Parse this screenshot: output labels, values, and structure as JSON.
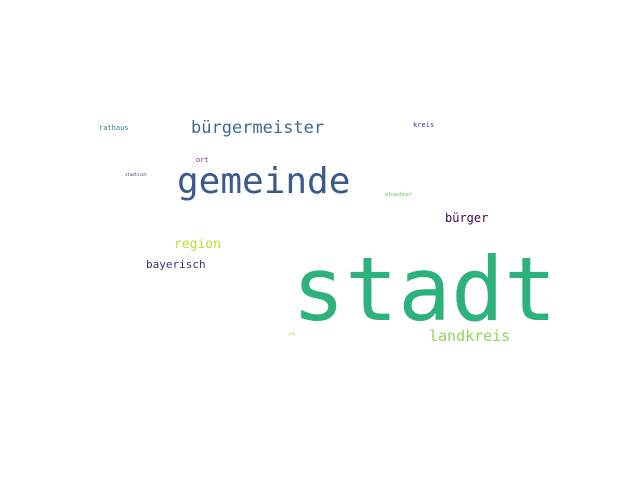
{
  "word_cloud": {
    "background_color": "#ffffff",
    "words": [
      {
        "key": "stadt",
        "text": "stadt",
        "color": "#2db27d"
      },
      {
        "key": "gemeinde",
        "text": "gemeinde",
        "color": "#3b5a8c"
      },
      {
        "key": "buergermeister",
        "text": "bürgermeister",
        "color": "#3e6a8e"
      },
      {
        "key": "landkreis",
        "text": "landkreis",
        "color": "#8ed654"
      },
      {
        "key": "region",
        "text": "region",
        "color": "#c5d930"
      },
      {
        "key": "buerger",
        "text": "bürger",
        "color": "#440154"
      },
      {
        "key": "bayerisch",
        "text": "bayerisch",
        "color": "#3a2f7a"
      },
      {
        "key": "rathaus",
        "text": "rathaus",
        "color": "#2c7d8e"
      },
      {
        "key": "kreis",
        "text": "kreis",
        "color": "#43418a"
      },
      {
        "key": "ort",
        "text": "ort",
        "color": "#6d2a8a"
      },
      {
        "key": "einwohner",
        "text": "einwohner",
        "color": "#5ec962"
      },
      {
        "key": "stadtisch",
        "text": "stadtisch",
        "color": "#482576"
      },
      {
        "key": "jan",
        "text": "jan",
        "color": "#a2da37"
      }
    ]
  }
}
